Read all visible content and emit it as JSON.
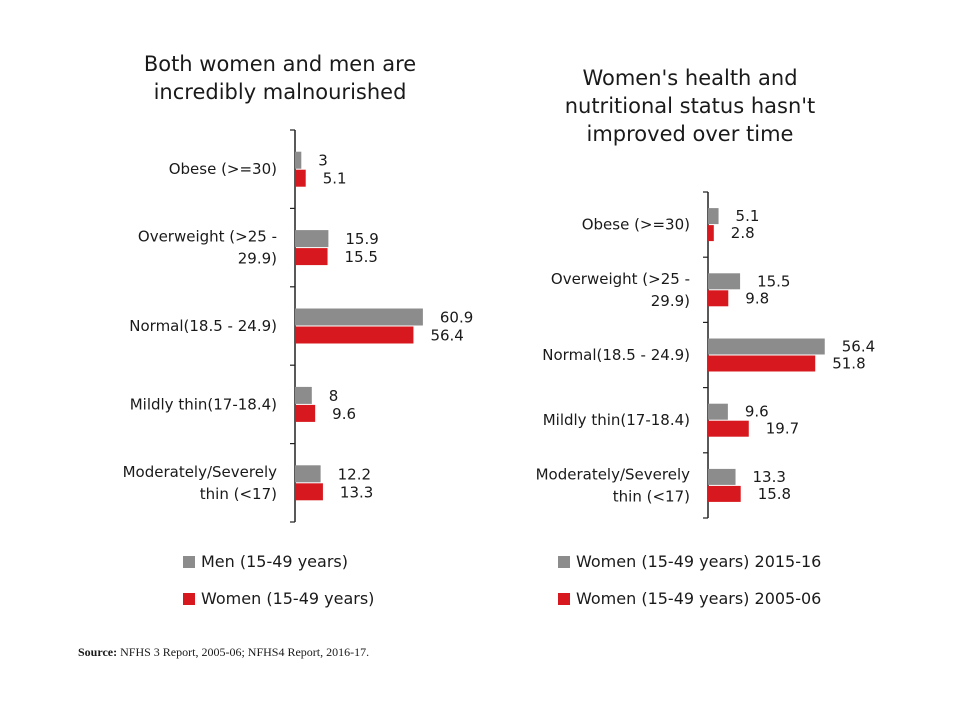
{
  "source": {
    "label": "Source:",
    "text": "NFHS 3 Report, 2005-06; NFHS4 Report, 2016-17."
  },
  "colors": {
    "series1": "#8c8c8c",
    "series2": "#d7191f"
  },
  "chart_data": [
    {
      "type": "bar",
      "orientation": "horizontal",
      "title_lines": [
        "Both women and men are",
        "incredibly malnourished"
      ],
      "categories": [
        [
          "Obese (>=30)"
        ],
        [
          "Overweight (>25 -",
          "29.9)"
        ],
        [
          "Normal(18.5 - 24.9)"
        ],
        [
          "Mildly thin(17-18.4)"
        ],
        [
          "Moderately/Severely",
          "thin (<17)"
        ]
      ],
      "series": [
        {
          "name": "Men (15-49 years)",
          "values": [
            3,
            15.9,
            60.9,
            8,
            12.2
          ]
        },
        {
          "name": "Women (15-49 years)",
          "values": [
            5.1,
            15.5,
            56.4,
            9.6,
            13.3
          ]
        }
      ],
      "legend": "bottom",
      "grid": false
    },
    {
      "type": "bar",
      "orientation": "horizontal",
      "title_lines": [
        "Women's health and",
        "nutritional status hasn't",
        "improved over time"
      ],
      "categories": [
        [
          "Obese (>=30)"
        ],
        [
          "Overweight (>25 -",
          "29.9)"
        ],
        [
          "Normal(18.5 - 24.9)"
        ],
        [
          "Mildly thin(17-18.4)"
        ],
        [
          "Moderately/Severely",
          "thin (<17)"
        ]
      ],
      "series": [
        {
          "name": "Women (15-49 years) 2015-16",
          "values": [
            5.1,
            15.5,
            56.4,
            9.6,
            13.3
          ]
        },
        {
          "name": "Women (15-49 years) 2005-06",
          "values": [
            2.8,
            9.8,
            51.8,
            19.7,
            15.8
          ]
        }
      ],
      "legend": "bottom",
      "grid": false
    }
  ]
}
